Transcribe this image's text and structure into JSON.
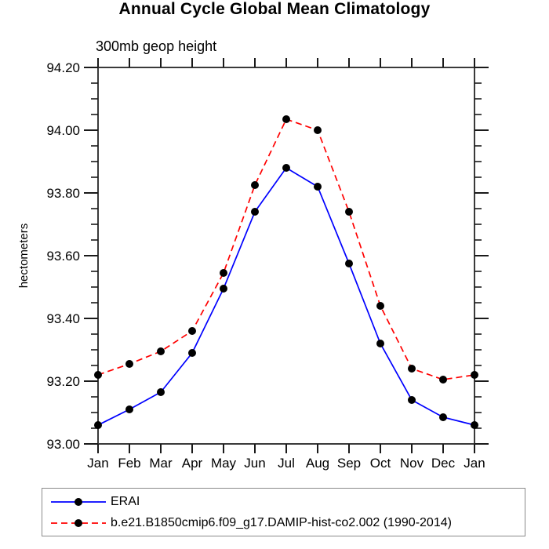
{
  "chart_data": {
    "type": "line",
    "title": "Annual Cycle Global Mean Climatology",
    "subtitle": "300mb geop height",
    "ylabel": "hectometers",
    "categories": [
      "Jan",
      "Feb",
      "Mar",
      "Apr",
      "May",
      "Jun",
      "Jul",
      "Aug",
      "Sep",
      "Oct",
      "Nov",
      "Dec",
      "Jan"
    ],
    "ylim": [
      93.0,
      94.2
    ],
    "y_major_step": 0.2,
    "y_minor_step": 0.05,
    "y_major_tick_labels": [
      "93.00",
      "93.20",
      "93.40",
      "93.60",
      "93.80",
      "94.00",
      "94.20"
    ],
    "grid": false,
    "legend_position": "bottom-left-box",
    "series": [
      {
        "name": "ERAI",
        "color": "#0000ff",
        "line_style": "solid",
        "marker": "filled-circle",
        "marker_color": "#000000",
        "values": [
          93.06,
          93.11,
          93.165,
          93.29,
          93.495,
          93.74,
          93.88,
          93.82,
          93.575,
          93.32,
          93.14,
          93.085,
          93.06
        ]
      },
      {
        "name": "b.e21.B1850cmip6.f09_g17.DAMIP-hist-co2.002 (1990-2014)",
        "color": "#ff0000",
        "line_style": "dashed",
        "marker": "filled-circle",
        "marker_color": "#000000",
        "values": [
          93.22,
          93.255,
          93.295,
          93.36,
          93.545,
          93.825,
          94.035,
          94.0,
          93.74,
          93.44,
          93.24,
          93.205,
          93.22
        ]
      }
    ]
  },
  "colors": {
    "axis": "#3a3a3a",
    "tick": "#1a1a1a",
    "background": "#ffffff",
    "legend_border": "#8a8a8a"
  }
}
